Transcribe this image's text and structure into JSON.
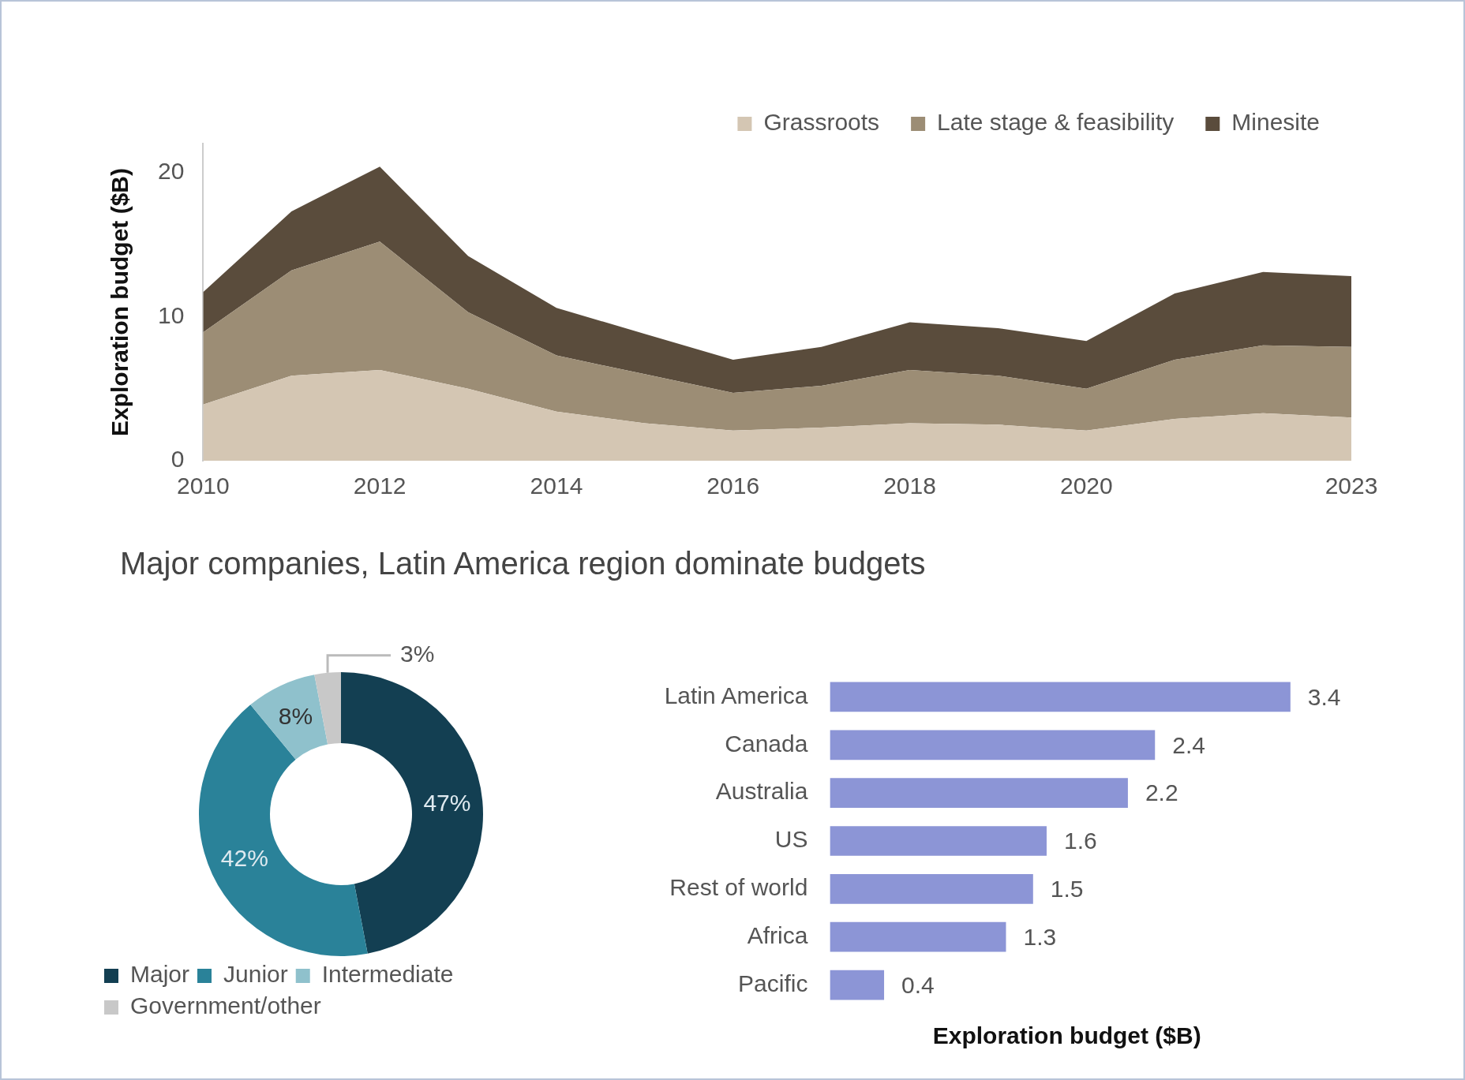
{
  "chart_data": [
    {
      "type": "area",
      "ylabel": "Exploration budget ($B)",
      "stacked": true,
      "x": [
        2010,
        2011,
        2012,
        2013,
        2014,
        2015,
        2016,
        2017,
        2018,
        2019,
        2020,
        2021,
        2022,
        2023
      ],
      "xlim": [
        2010,
        2023
      ],
      "xticks": [
        2010,
        2012,
        2014,
        2016,
        2018,
        2020,
        2023
      ],
      "ylim": [
        0,
        22
      ],
      "yticks": [
        0,
        10,
        20
      ],
      "grid": false,
      "legend": "top right",
      "series": [
        {
          "name": "Grassroots",
          "color": "#d4c6b3",
          "values": [
            3.9,
            5.9,
            6.3,
            5.0,
            3.4,
            2.6,
            2.1,
            2.3,
            2.6,
            2.5,
            2.1,
            2.9,
            3.3,
            3.0
          ]
        },
        {
          "name": "Late stage & feasibility",
          "color": "#9c8d75",
          "values": [
            5.0,
            7.3,
            8.9,
            5.3,
            3.9,
            3.4,
            2.6,
            2.9,
            3.7,
            3.4,
            2.9,
            4.1,
            4.7,
            4.9
          ]
        },
        {
          "name": "Minesite",
          "color": "#5a4c3c",
          "values": [
            2.8,
            4.1,
            5.2,
            3.9,
            3.3,
            2.8,
            2.3,
            2.7,
            3.3,
            3.3,
            3.3,
            4.6,
            5.1,
            4.9
          ]
        }
      ]
    },
    {
      "type": "donut",
      "title": "Major companies, Latin America region dominate budgets",
      "categories": [
        "Major",
        "Junior",
        "Intermediate",
        "Government/other"
      ],
      "values": [
        47,
        42,
        8,
        3
      ],
      "colors": [
        "#133f52",
        "#2a8299",
        "#8fc1cc",
        "#c8c8c8"
      ],
      "value_labels": [
        "47%",
        "42%",
        "8%",
        "3%"
      ],
      "legend": "bottom left"
    },
    {
      "type": "bar",
      "orientation": "horizontal",
      "categories": [
        "Latin America",
        "Canada",
        "Australia",
        "US",
        "Rest of world",
        "Africa",
        "Pacific"
      ],
      "values": [
        3.4,
        2.4,
        2.2,
        1.6,
        1.5,
        1.3,
        0.4
      ],
      "color": "#8c95d6",
      "data_labels": true,
      "xlabel": "Exploration budget ($B)",
      "tick_labels": "y",
      "grid": false,
      "legend": false
    }
  ]
}
